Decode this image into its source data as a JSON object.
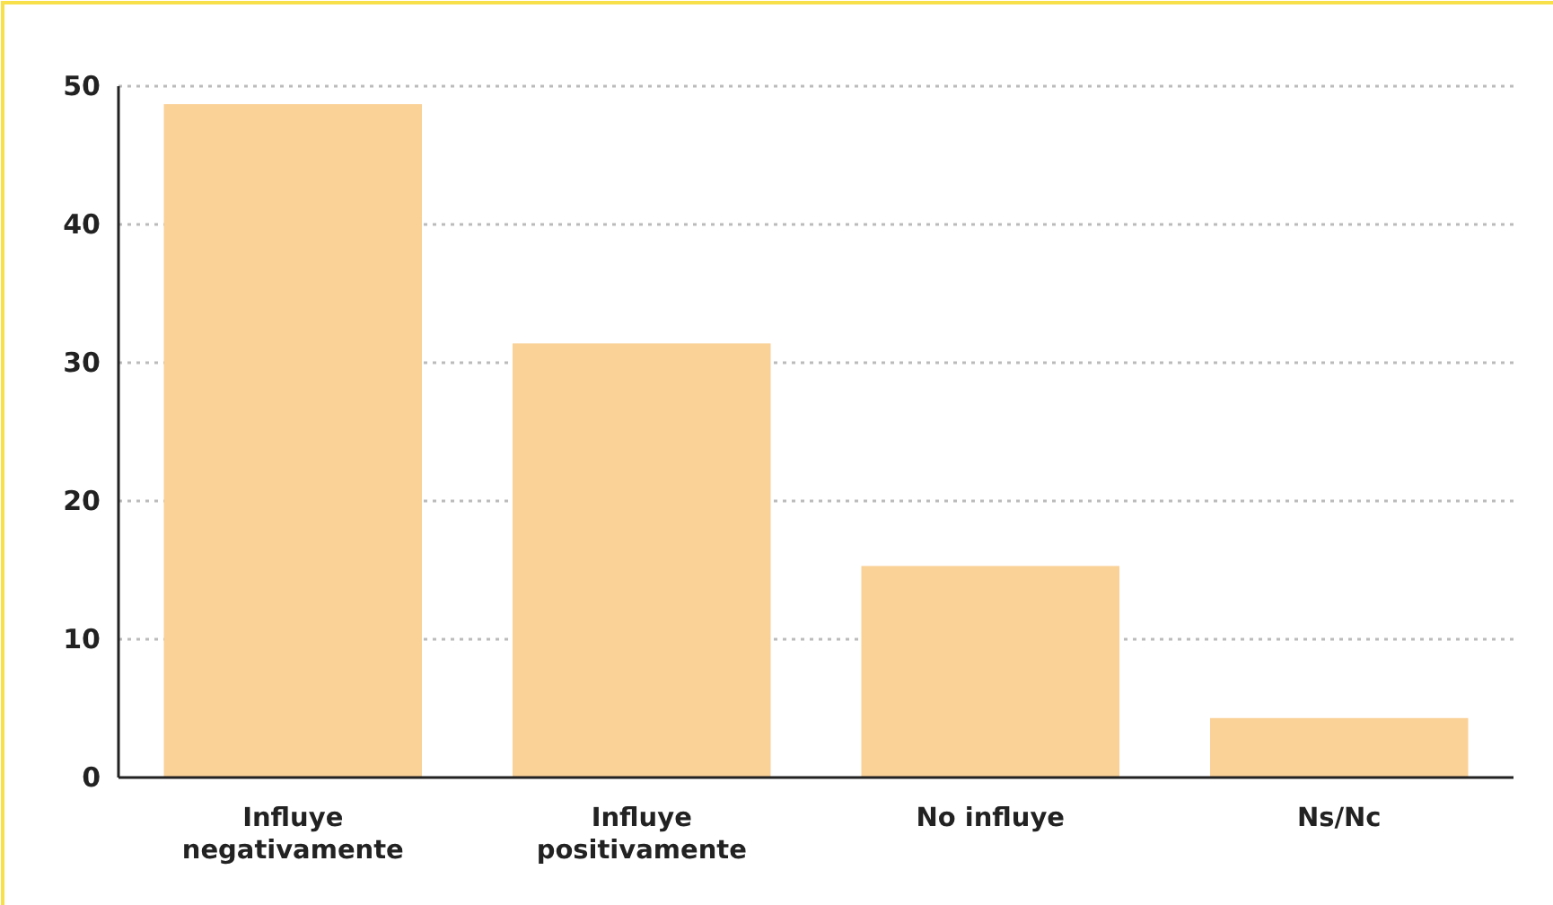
{
  "chart_data": {
    "type": "bar",
    "categories": [
      "Influye negativamente",
      "Influye positivamente",
      "No influye",
      "Ns/Nc"
    ],
    "values": [
      48.7,
      31.4,
      15.3,
      4.3
    ],
    "color": "#fad197",
    "ylim": [
      0,
      50
    ],
    "yticks": [
      0,
      10,
      20,
      30,
      40,
      50
    ],
    "grid": "y"
  }
}
